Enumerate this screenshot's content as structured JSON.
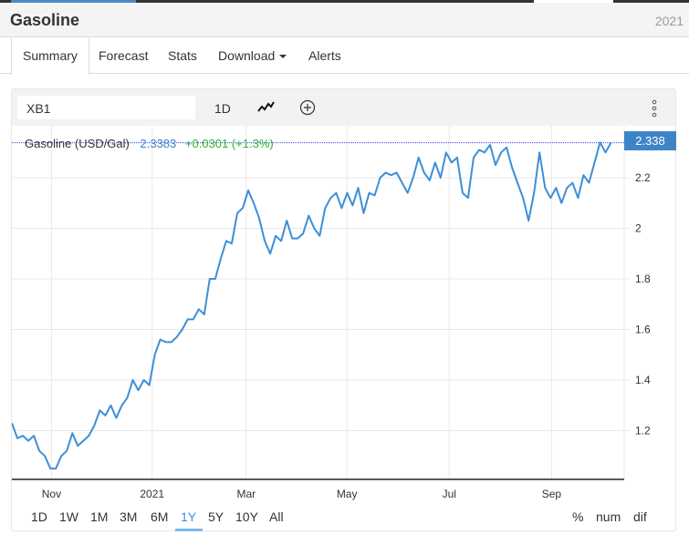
{
  "header": {
    "title": "Gasoline",
    "year": "2021"
  },
  "tabs": [
    {
      "label": "Summary"
    },
    {
      "label": "Forecast"
    },
    {
      "label": "Stats"
    },
    {
      "label": "Download"
    },
    {
      "label": "Alerts"
    }
  ],
  "toolbar": {
    "symbol": "XB1",
    "interval": "1D",
    "chart_type_icon": "line-chart-icon",
    "add_icon": "plus-circle-icon",
    "menu_icon": "vertical-dots-icon"
  },
  "legend": {
    "name": "Gasoline (USD/Gal)",
    "price": "2.3383",
    "change": "+0.0301 (+1.3%)"
  },
  "price_tag": "2.338",
  "ranges": [
    "1D",
    "1W",
    "1M",
    "3M",
    "6M",
    "1Y",
    "5Y",
    "10Y",
    "All"
  ],
  "active_range": "1Y",
  "modes": [
    "%",
    "num",
    "dif"
  ],
  "colors": {
    "line": "#3d8fd6",
    "accent": "#3d85c6",
    "positive": "#2db52d"
  },
  "chart_data": {
    "type": "line",
    "title": "Gasoline (USD/Gal)",
    "xlabel": "",
    "ylabel": "",
    "x_range_days": [
      0,
      371
    ],
    "last_day": 363,
    "xticks": [
      {
        "label": "Nov",
        "day": 24
      },
      {
        "label": "2021",
        "day": 85
      },
      {
        "label": "Mar",
        "day": 142
      },
      {
        "label": "May",
        "day": 203
      },
      {
        "label": "Jul",
        "day": 265
      },
      {
        "label": "Sep",
        "day": 327
      }
    ],
    "yticks": [
      1.2,
      1.4,
      1.6,
      1.8,
      2,
      2.2
    ],
    "ylim": [
      1.0,
      2.4
    ],
    "last_value": 2.3383,
    "values": [
      1.23,
      1.17,
      1.18,
      1.16,
      1.18,
      1.12,
      1.1,
      1.05,
      1.05,
      1.1,
      1.12,
      1.19,
      1.14,
      1.16,
      1.18,
      1.22,
      1.28,
      1.26,
      1.3,
      1.25,
      1.3,
      1.33,
      1.4,
      1.36,
      1.4,
      1.38,
      1.5,
      1.56,
      1.55,
      1.55,
      1.57,
      1.6,
      1.64,
      1.64,
      1.68,
      1.66,
      1.8,
      1.8,
      1.88,
      1.95,
      1.94,
      2.06,
      2.08,
      2.15,
      2.1,
      2.04,
      1.95,
      1.9,
      1.97,
      1.95,
      2.03,
      1.96,
      1.96,
      1.98,
      2.05,
      2.0,
      1.97,
      2.08,
      2.12,
      2.14,
      2.08,
      2.14,
      2.09,
      2.16,
      2.06,
      2.14,
      2.13,
      2.2,
      2.22,
      2.21,
      2.22,
      2.18,
      2.14,
      2.2,
      2.28,
      2.22,
      2.19,
      2.26,
      2.2,
      2.3,
      2.26,
      2.28,
      2.14,
      2.12,
      2.28,
      2.31,
      2.3,
      2.33,
      2.25,
      2.3,
      2.32,
      2.24,
      2.18,
      2.12,
      2.03,
      2.14,
      2.3,
      2.16,
      2.12,
      2.16,
      2.1,
      2.16,
      2.18,
      2.12,
      2.21,
      2.18,
      2.26,
      2.34,
      2.3,
      2.3383
    ],
    "grid": true,
    "legend": "top-left"
  }
}
